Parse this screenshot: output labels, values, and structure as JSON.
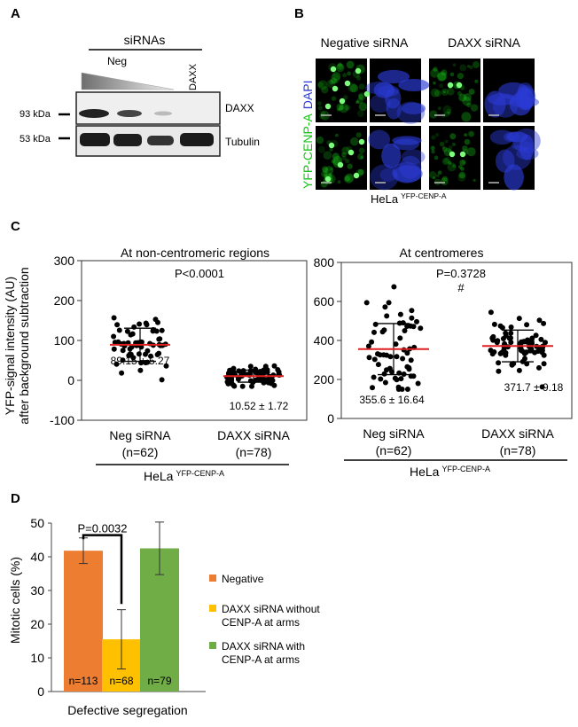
{
  "panel_a": {
    "letter": "A",
    "header": "siRNAs",
    "lane_neg": "Neg",
    "lane_daxx": "DAXX",
    "marker_top": "93 kDa",
    "marker_bottom": "53 kDa",
    "blot_top": "DAXX",
    "blot_bottom": "Tubulin"
  },
  "panel_b": {
    "letter": "B",
    "col_neg": "Negative siRNA",
    "col_daxx": "DAXX siRNA",
    "side_label_green": "YFP-CENP-A",
    "side_label_blue": "DAPI",
    "cell_line": "HeLa",
    "cell_line_sup": "YFP-CENP-A",
    "green_color": "#17c417",
    "blue_color": "#2b3bd6"
  },
  "panel_c": {
    "letter": "C",
    "ylabel_line1": "YFP-signal intensity (AU)",
    "ylabel_line2": "after background subtraction",
    "cell_line": "HeLa",
    "cell_line_sup": "YFP-CENP-A",
    "left": {
      "title": "At non-centromeric regions",
      "pvalue": "P<0.0001",
      "ticks": [
        "300",
        "200",
        "100",
        "0",
        "-100"
      ],
      "groups": [
        {
          "name": "Neg siRNA",
          "n": "(n=62)",
          "mean": 89.15,
          "sd": 41.5,
          "label": "89.15 ± 5.27",
          "count": 62
        },
        {
          "name": "DAXX siRNA",
          "n": "(n=78)",
          "mean": 10.52,
          "sd": 15.2,
          "label": "10.52 ± 1.72",
          "count": 78
        }
      ]
    },
    "right": {
      "title": "At centromeres",
      "pvalue": "P=0.3728",
      "mark": "#",
      "ticks": [
        "800",
        "600",
        "400",
        "200",
        "0"
      ],
      "groups": [
        {
          "name": "Neg siRNA",
          "n": "(n=62)",
          "mean": 355.6,
          "sd": 131.0,
          "label": "355.6 ± 16.64",
          "count": 62
        },
        {
          "name": "DAXX siRNA",
          "n": "(n=78)",
          "mean": 371.7,
          "sd": 81.2,
          "label": "371.7 ± 9.18",
          "count": 78
        }
      ]
    },
    "mean_color": "#e02020"
  },
  "panel_d": {
    "letter": "D",
    "ylabel": "Mitotic cells (%)",
    "xlabel": "Defective segregation",
    "pvalue": "P=0.0032",
    "ticks": [
      "50",
      "40",
      "30",
      "20",
      "10",
      "0"
    ]
  },
  "chart_data": [
    {
      "type": "scatter",
      "title": "At non-centromeric regions",
      "ylabel": "YFP-signal intensity (AU) after background subtraction",
      "categories": [
        "Neg siRNA (n=62)",
        "DAXX siRNA (n=78)"
      ],
      "ylim": [
        -100,
        300
      ],
      "series": [
        {
          "name": "Neg siRNA",
          "mean": 89.15,
          "sem": 5.27
        },
        {
          "name": "DAXX siRNA",
          "mean": 10.52,
          "sem": 1.72
        }
      ],
      "annotations": [
        "P<0.0001"
      ]
    },
    {
      "type": "scatter",
      "title": "At centromeres",
      "categories": [
        "Neg siRNA (n=62)",
        "DAXX siRNA (n=78)"
      ],
      "ylim": [
        0,
        800
      ],
      "series": [
        {
          "name": "Neg siRNA",
          "mean": 355.6,
          "sem": 16.64
        },
        {
          "name": "DAXX siRNA",
          "mean": 371.7,
          "sem": 9.18
        }
      ],
      "annotations": [
        "P=0.3728",
        "#"
      ]
    },
    {
      "type": "bar",
      "ylabel": "Mitotic cells (%)",
      "xlabel": "Defective segregation",
      "ylim": [
        0,
        50
      ],
      "categories": [
        "Negative",
        "DAXX siRNA without CENP-A at arms",
        "DAXX siRNA with CENP-A at arms"
      ],
      "values": [
        41.8,
        15.5,
        42.5
      ],
      "errors": [
        3.8,
        8.8,
        7.8
      ],
      "counts": [
        "n=113",
        "n=68",
        "n=79"
      ],
      "colors": [
        "#ed7d31",
        "#ffc000",
        "#70ad47"
      ],
      "legend": "right",
      "annotations": [
        "P=0.0032"
      ]
    }
  ]
}
